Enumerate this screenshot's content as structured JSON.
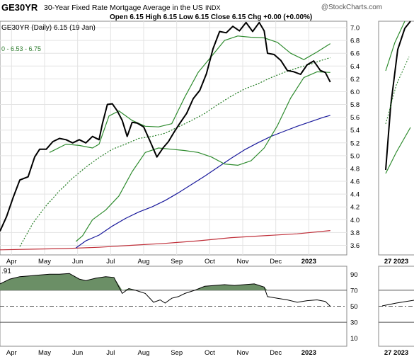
{
  "header": {
    "symbol": "GE30YR",
    "description": "30-Year Fixed Rate Mortgage Average in the US",
    "exchange": "INDX",
    "watermark": "@StockCharts.com",
    "ohlc": "Open 6.15  High 6.15  Low 6.15  Close 6.15  Chg +0.00 (+0.00%)",
    "legend_main": "GE30YR (Daily) 6.15 (19 Jan)",
    "legend_ma": "0 - 6.53 - 6.75",
    "legend_rsi": ".91"
  },
  "colors": {
    "price": "#000000",
    "bollinger": "#2e8b2e",
    "ma_short": "#1f7a1f",
    "ma_mid": "#1a1a9c",
    "ma_long": "#c0303a",
    "rsi_fill": "#6b8f66",
    "grid": "#e3e3e3"
  },
  "chart_data": [
    {
      "type": "line",
      "title": "GE30YR (Daily)",
      "x_labels": [
        "Apr",
        "May",
        "Jun",
        "Jul",
        "Aug",
        "Sep",
        "Oct",
        "Nov",
        "Dec",
        "2023"
      ],
      "y_ticks": [
        3.6,
        3.8,
        4.0,
        4.2,
        4.4,
        4.6,
        4.8,
        5.0,
        5.2,
        5.4,
        5.6,
        5.8,
        6.0,
        6.2,
        6.4,
        6.6,
        6.8,
        7.0
      ],
      "ylim": [
        3.45,
        7.1
      ],
      "xlim": [
        0,
        10.5
      ],
      "grid": true,
      "series": [
        {
          "name": "GE30YR",
          "color": "#000000",
          "points": [
            [
              0,
              3.82
            ],
            [
              0.2,
              4.05
            ],
            [
              0.4,
              4.35
            ],
            [
              0.6,
              4.62
            ],
            [
              0.85,
              4.67
            ],
            [
              1.05,
              4.98
            ],
            [
              1.2,
              5.1
            ],
            [
              1.4,
              5.1
            ],
            [
              1.6,
              5.22
            ],
            [
              1.8,
              5.27
            ],
            [
              2.0,
              5.25
            ],
            [
              2.2,
              5.2
            ],
            [
              2.4,
              5.25
            ],
            [
              2.6,
              5.2
            ],
            [
              2.8,
              5.3
            ],
            [
              3.0,
              5.25
            ],
            [
              3.1,
              5.5
            ],
            [
              3.25,
              5.8
            ],
            [
              3.4,
              5.81
            ],
            [
              3.55,
              5.7
            ],
            [
              3.7,
              5.55
            ],
            [
              3.85,
              5.3
            ],
            [
              4.0,
              5.52
            ],
            [
              4.15,
              5.51
            ],
            [
              4.35,
              5.45
            ],
            [
              4.55,
              5.22
            ],
            [
              4.75,
              4.98
            ],
            [
              4.95,
              5.13
            ],
            [
              5.1,
              5.22
            ],
            [
              5.25,
              5.35
            ],
            [
              5.45,
              5.51
            ],
            [
              5.65,
              5.66
            ],
            [
              5.85,
              5.89
            ],
            [
              6.05,
              6.02
            ],
            [
              6.25,
              6.28
            ],
            [
              6.45,
              6.67
            ],
            [
              6.65,
              6.94
            ],
            [
              6.85,
              6.92
            ],
            [
              7.05,
              7.02
            ],
            [
              7.25,
              6.95
            ],
            [
              7.45,
              7.08
            ],
            [
              7.65,
              6.94
            ],
            [
              7.85,
              7.08
            ],
            [
              8.0,
              6.95
            ],
            [
              8.1,
              6.6
            ],
            [
              8.3,
              6.58
            ],
            [
              8.5,
              6.49
            ],
            [
              8.7,
              6.33
            ],
            [
              8.9,
              6.31
            ],
            [
              9.1,
              6.27
            ],
            [
              9.3,
              6.42
            ],
            [
              9.5,
              6.48
            ],
            [
              9.7,
              6.33
            ],
            [
              9.85,
              6.3
            ],
            [
              10.0,
              6.15
            ]
          ]
        },
        {
          "name": "Bollinger upper",
          "color": "#2e8b2e",
          "points": [
            [
              1.5,
              5.05
            ],
            [
              2.0,
              5.18
            ],
            [
              2.4,
              5.16
            ],
            [
              2.8,
              5.12
            ],
            [
              3.0,
              5.18
            ],
            [
              3.3,
              5.62
            ],
            [
              3.6,
              5.7
            ],
            [
              4.0,
              5.55
            ],
            [
              4.4,
              5.46
            ],
            [
              4.8,
              5.45
            ],
            [
              5.2,
              5.5
            ],
            [
              5.6,
              5.92
            ],
            [
              6.0,
              6.3
            ],
            [
              6.4,
              6.55
            ],
            [
              6.8,
              6.8
            ],
            [
              7.2,
              6.87
            ],
            [
              7.6,
              6.85
            ],
            [
              8.0,
              6.84
            ],
            [
              8.4,
              6.77
            ],
            [
              8.8,
              6.6
            ],
            [
              9.2,
              6.5
            ],
            [
              9.6,
              6.62
            ],
            [
              10.0,
              6.75
            ]
          ]
        },
        {
          "name": "Bollinger lower",
          "color": "#2e8b2e",
          "points": [
            [
              2.3,
              3.66
            ],
            [
              2.5,
              3.75
            ],
            [
              2.8,
              4.0
            ],
            [
              3.2,
              4.15
            ],
            [
              3.6,
              4.37
            ],
            [
              4.0,
              4.75
            ],
            [
              4.4,
              5.05
            ],
            [
              4.8,
              5.12
            ],
            [
              5.2,
              5.1
            ],
            [
              5.6,
              5.08
            ],
            [
              6.0,
              5.05
            ],
            [
              6.4,
              4.98
            ],
            [
              6.8,
              4.87
            ],
            [
              7.2,
              4.85
            ],
            [
              7.6,
              4.92
            ],
            [
              8.0,
              5.12
            ],
            [
              8.4,
              5.47
            ],
            [
              8.8,
              5.9
            ],
            [
              9.2,
              6.22
            ],
            [
              9.6,
              6.31
            ],
            [
              10.0,
              6.3
            ]
          ]
        },
        {
          "name": "MA short",
          "color": "#1f7a1f",
          "dashed": true,
          "points": [
            [
              0.6,
              3.58
            ],
            [
              1.0,
              3.95
            ],
            [
              1.4,
              4.22
            ],
            [
              1.8,
              4.45
            ],
            [
              2.2,
              4.65
            ],
            [
              2.6,
              4.82
            ],
            [
              3.0,
              4.97
            ],
            [
              3.4,
              5.1
            ],
            [
              3.8,
              5.18
            ],
            [
              4.2,
              5.27
            ],
            [
              4.6,
              5.3
            ],
            [
              5.0,
              5.35
            ],
            [
              5.4,
              5.45
            ],
            [
              5.8,
              5.55
            ],
            [
              6.2,
              5.66
            ],
            [
              6.6,
              5.8
            ],
            [
              7.0,
              5.93
            ],
            [
              7.4,
              6.04
            ],
            [
              7.8,
              6.12
            ],
            [
              8.2,
              6.22
            ],
            [
              8.6,
              6.3
            ],
            [
              9.0,
              6.37
            ],
            [
              9.4,
              6.43
            ],
            [
              9.8,
              6.5
            ],
            [
              10.0,
              6.53
            ]
          ]
        },
        {
          "name": "MA mid",
          "color": "#1a1a9c",
          "points": [
            [
              2.3,
              3.56
            ],
            [
              2.6,
              3.67
            ],
            [
              3.0,
              3.76
            ],
            [
              3.4,
              3.9
            ],
            [
              3.8,
              4.02
            ],
            [
              4.2,
              4.12
            ],
            [
              4.6,
              4.2
            ],
            [
              5.0,
              4.3
            ],
            [
              5.4,
              4.42
            ],
            [
              5.8,
              4.55
            ],
            [
              6.2,
              4.68
            ],
            [
              6.6,
              4.82
            ],
            [
              7.0,
              4.96
            ],
            [
              7.4,
              5.09
            ],
            [
              7.8,
              5.2
            ],
            [
              8.2,
              5.3
            ],
            [
              8.6,
              5.38
            ],
            [
              9.0,
              5.46
            ],
            [
              9.4,
              5.53
            ],
            [
              9.8,
              5.6
            ],
            [
              10.0,
              5.63
            ]
          ]
        },
        {
          "name": "MA long",
          "color": "#c0303a",
          "points": [
            [
              0,
              3.53
            ],
            [
              1.0,
              3.54
            ],
            [
              2.0,
              3.55
            ],
            [
              3.0,
              3.57
            ],
            [
              4.0,
              3.6
            ],
            [
              5.0,
              3.63
            ],
            [
              6.0,
              3.67
            ],
            [
              7.0,
              3.72
            ],
            [
              8.0,
              3.75
            ],
            [
              9.0,
              3.78
            ],
            [
              10.0,
              3.83
            ]
          ]
        }
      ]
    },
    {
      "type": "area",
      "title": "RSI",
      "x_labels": [
        "Apr",
        "May",
        "Jun",
        "Jul",
        "Aug",
        "Sep",
        "Oct",
        "Nov",
        "Dec",
        "2023"
      ],
      "y_ticks": [
        10,
        30,
        50,
        70,
        90
      ],
      "ylim": [
        0,
        100
      ],
      "reference_lines": [
        30,
        50,
        70
      ],
      "values": [
        [
          0,
          78
        ],
        [
          0.3,
          84
        ],
        [
          0.6,
          87
        ],
        [
          0.9,
          88
        ],
        [
          1.2,
          89
        ],
        [
          1.5,
          90
        ],
        [
          1.8,
          90
        ],
        [
          2.1,
          91
        ],
        [
          2.4,
          84
        ],
        [
          2.6,
          82
        ],
        [
          2.9,
          85
        ],
        [
          3.2,
          87
        ],
        [
          3.45,
          86
        ],
        [
          3.7,
          66
        ],
        [
          3.9,
          72
        ],
        [
          4.1,
          70
        ],
        [
          4.4,
          66
        ],
        [
          4.65,
          55
        ],
        [
          4.85,
          58
        ],
        [
          5.0,
          54
        ],
        [
          5.2,
          60
        ],
        [
          5.4,
          62
        ],
        [
          5.6,
          66
        ],
        [
          5.9,
          70
        ],
        [
          6.2,
          75
        ],
        [
          6.5,
          76
        ],
        [
          6.8,
          77
        ],
        [
          7.1,
          76
        ],
        [
          7.4,
          77
        ],
        [
          7.7,
          78
        ],
        [
          8.0,
          74
        ],
        [
          8.1,
          62
        ],
        [
          8.4,
          60
        ],
        [
          8.7,
          58
        ],
        [
          9.0,
          55
        ],
        [
          9.3,
          57
        ],
        [
          9.6,
          58
        ],
        [
          9.85,
          56
        ],
        [
          10.0,
          50
        ]
      ]
    }
  ]
}
